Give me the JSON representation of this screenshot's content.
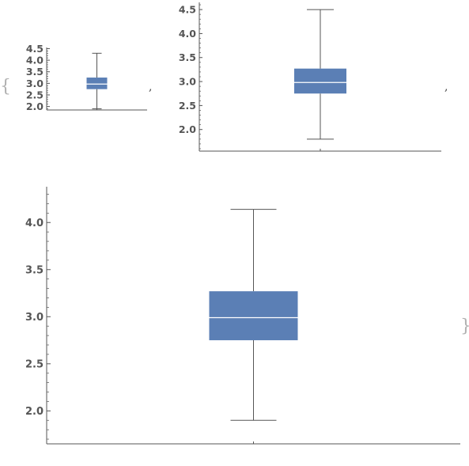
{
  "list": {
    "open_brace": "{",
    "close_brace": "}",
    "separator": ","
  },
  "style": {
    "box_fill": "#5b7fb5",
    "median_line": "#ffffff",
    "axis_color": "#555555",
    "whisker_color": "#555555",
    "brace_color": "#b0b0b0"
  },
  "chart_data": [
    {
      "type": "box",
      "series": [
        {
          "min": 1.9,
          "q1": 2.75,
          "median": 2.97,
          "q3": 3.25,
          "max": 4.3
        }
      ],
      "ylim": [
        1.85,
        4.55
      ],
      "yticks": [
        2.0,
        2.5,
        3.0,
        3.5,
        4.0,
        4.5
      ],
      "ytick_labels": [
        "2.0",
        "2.5",
        "3.0",
        "3.5",
        "4.0",
        "4.5"
      ],
      "minor_step": 0.1,
      "grid": false
    },
    {
      "type": "box",
      "series": [
        {
          "min": 1.8,
          "q1": 2.75,
          "median": 2.98,
          "q3": 3.27,
          "max": 4.5
        }
      ],
      "ylim": [
        1.55,
        4.65
      ],
      "yticks": [
        2.0,
        2.5,
        3.0,
        3.5,
        4.0,
        4.5
      ],
      "ytick_labels": [
        "2.0",
        "2.5",
        "3.0",
        "3.5",
        "4.0",
        "4.5"
      ],
      "minor_step": 0.1,
      "grid": false
    },
    {
      "type": "box",
      "series": [
        {
          "min": 1.9,
          "q1": 2.75,
          "median": 2.99,
          "q3": 3.27,
          "max": 4.14
        }
      ],
      "ylim": [
        1.65,
        4.38
      ],
      "yticks": [
        2.0,
        2.5,
        3.0,
        3.5,
        4.0
      ],
      "ytick_labels": [
        "2.0",
        "2.5",
        "3.0",
        "3.5",
        "4.0"
      ],
      "minor_step": 0.1,
      "grid": false
    }
  ]
}
